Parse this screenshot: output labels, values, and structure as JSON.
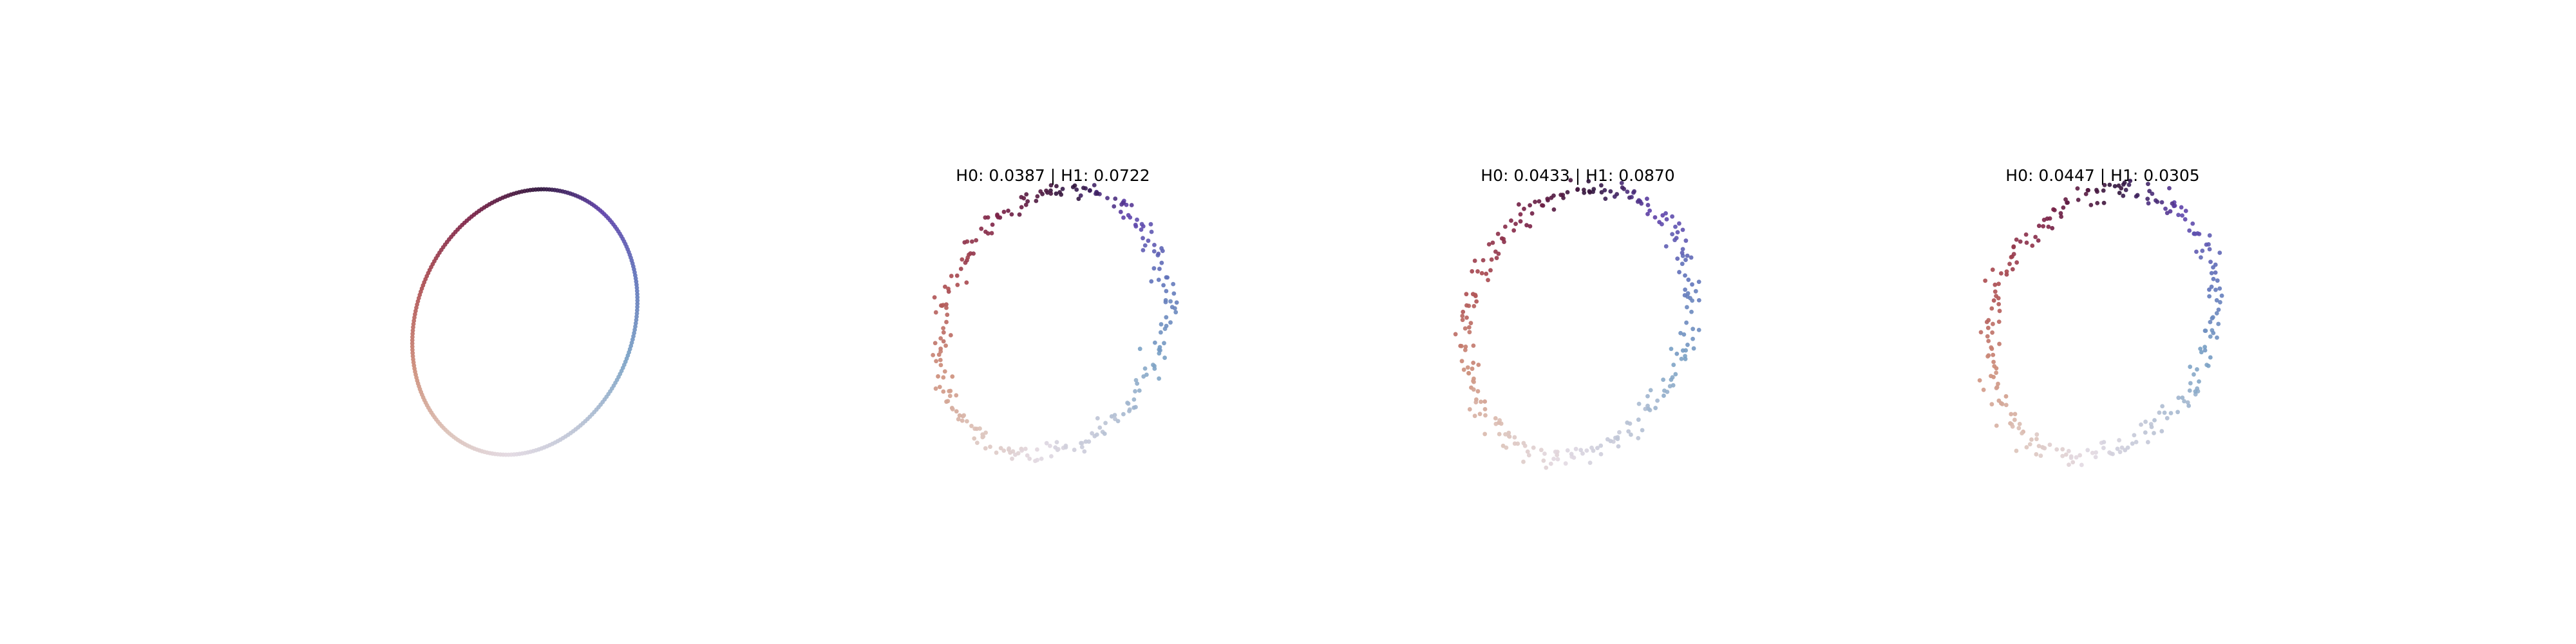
{
  "figure": {
    "background": "#ffffff",
    "colormap": "twilight",
    "point_count": 256
  },
  "chart_data": [
    {
      "type": "scatter",
      "title": "",
      "axes_visible": false,
      "shape": "ellipse",
      "center": [
        0,
        0
      ],
      "semi_axes": [
        1.0,
        1.26
      ],
      "rotation_deg": -22,
      "noise": 0.0,
      "xlim": [
        -1.6,
        1.6
      ],
      "ylim": [
        -1.6,
        1.6
      ]
    },
    {
      "type": "scatter",
      "title": "H0: 0.0387 | H1: 0.0722",
      "axes_visible": false,
      "shape": "ellipse",
      "center": [
        0,
        0
      ],
      "semi_axes": [
        1.0,
        1.26
      ],
      "rotation_deg": -22,
      "noise": 0.045,
      "xlim": [
        -1.6,
        1.6
      ],
      "ylim": [
        -1.6,
        1.6
      ]
    },
    {
      "type": "scatter",
      "title": "H0: 0.0433 | H1: 0.0870",
      "axes_visible": false,
      "shape": "ellipse",
      "center": [
        0,
        0
      ],
      "semi_axes": [
        1.0,
        1.26
      ],
      "rotation_deg": -22,
      "noise": 0.05,
      "xlim": [
        -1.6,
        1.6
      ],
      "ylim": [
        -1.6,
        1.6
      ]
    },
    {
      "type": "scatter",
      "title": "H0: 0.0447 | H1: 0.0305",
      "axes_visible": false,
      "shape": "ellipse",
      "center": [
        0,
        0
      ],
      "semi_axes": [
        1.0,
        1.26
      ],
      "rotation_deg": -22,
      "noise": 0.05,
      "xlim": [
        -1.6,
        1.6
      ],
      "ylim": [
        -1.6,
        1.6
      ]
    }
  ]
}
